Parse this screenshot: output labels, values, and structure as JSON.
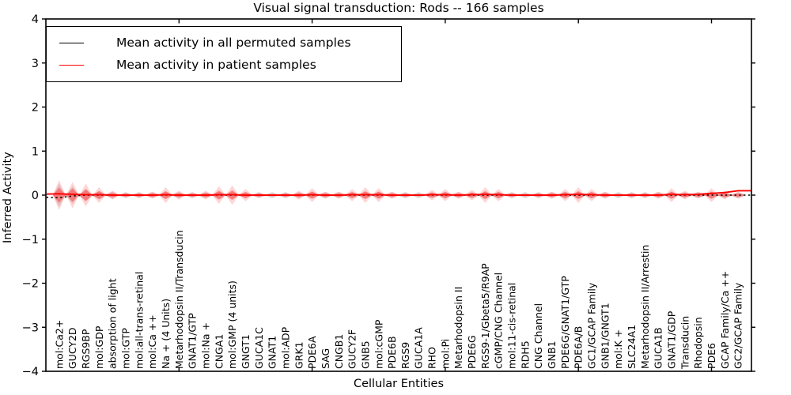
{
  "title": "Visual signal transduction: Rods -- 166 samples",
  "legend": {
    "items": [
      {
        "label": "Mean activity in all permuted samples",
        "color": "#000000"
      },
      {
        "label": "Mean activity in patient samples",
        "color": "#ff0000"
      }
    ]
  },
  "chart_data": {
    "type": "line",
    "subtype": "violin-distributions-with-mean-lines",
    "title": "Visual signal transduction: Rods -- 166 samples",
    "xlabel": "Cellular Entities",
    "ylabel": "Inferred Activity",
    "ylim": [
      -4,
      4
    ],
    "xlim": [
      0,
      53
    ],
    "grid": false,
    "legend_position": "upper left",
    "ytick_labels": [
      "4",
      "3",
      "2",
      "1",
      "0",
      "−1",
      "−2",
      "−3",
      "−4"
    ],
    "ytick_values": [
      4,
      3,
      2,
      1,
      0,
      -1,
      -2,
      -3,
      -4
    ],
    "x_major_ticks": [
      10,
      20,
      30,
      40,
      50
    ],
    "categories": [
      "mol:Ca2+",
      "GUCY2D",
      "RGS9BP",
      "mol:GDP",
      "absorption of light",
      "mol:GTP",
      "mol:all-trans-retinal",
      "mol:Ca ++",
      "Na + (4 Units)",
      "Metarhodopsin II/Transducin",
      "GNAT1/GTP",
      "mol:Na +",
      "CNGA1",
      "mol:GMP (4 units)",
      "GNGT1",
      "GUCA1C",
      "GNAT1",
      "mol:ADP",
      "GRK1",
      "PDE6A",
      "SAG",
      "CNGB1",
      "GUCY2F",
      "GNB5",
      "mol:cGMP",
      "PDE6B",
      "RGS9",
      "GUCA1A",
      "RHO",
      "mol:Pi",
      "Metarhodopsin II",
      "PDE6G",
      "RGS9-1/Gbeta5/R9AP",
      "cGMP/CNG Channel",
      "mol:11-cis-retinal",
      "RDH5",
      "CNG Channel",
      "GNB1",
      "PDE6G/GNAT1/GTP",
      "PDE6A/B",
      "GC1/GCAP Family",
      "GNB1/GNGT1",
      "mol:K +",
      "SLC24A1",
      "Metarhodopsin II/Arrestin",
      "GUCA1B",
      "GNAT1/GDP",
      "Transducin",
      "Rhodopsin",
      "PDE6",
      "GCAP Family/Ca ++",
      "GC2/GCAP Family"
    ],
    "series": [
      {
        "name": "Mean activity in all permuted samples",
        "color": "#000000",
        "style": "dashed",
        "values": [
          -0.06,
          -0.02,
          0,
          0,
          0,
          0,
          0,
          0,
          0,
          0,
          0,
          0,
          0,
          0,
          0,
          0,
          0,
          0,
          0,
          0,
          0,
          0,
          0,
          0,
          0,
          0,
          0,
          0,
          0,
          0,
          0,
          0,
          0,
          0,
          0,
          0,
          0,
          0,
          0,
          0,
          0,
          0,
          0,
          0,
          0,
          0,
          0,
          0,
          0,
          0,
          0,
          0
        ]
      },
      {
        "name": "Mean activity in patient samples",
        "color": "#ff0000",
        "style": "solid",
        "values": [
          0.03,
          0.02,
          0.01,
          0.01,
          0,
          0,
          0,
          0,
          0.01,
          0,
          0,
          0,
          0.01,
          0.01,
          0,
          0,
          0,
          0,
          0,
          0.01,
          0,
          0,
          0.01,
          0.01,
          0.01,
          0,
          0,
          0,
          0.01,
          0.01,
          0,
          0.01,
          0.02,
          0.01,
          0,
          0,
          0,
          0,
          0.01,
          0.02,
          0.01,
          0,
          0,
          0,
          0,
          0,
          0.02,
          0.01,
          0.02,
          0.04,
          0.06,
          0.1
        ]
      }
    ],
    "violins": {
      "patient_halfheight": [
        0.17,
        0.15,
        0.13,
        0.09,
        0.05,
        0.03,
        0.03,
        0.04,
        0.09,
        0.05,
        0.03,
        0.05,
        0.1,
        0.11,
        0.07,
        0.03,
        0.02,
        0.03,
        0.05,
        0.08,
        0.04,
        0.04,
        0.07,
        0.09,
        0.08,
        0.04,
        0.03,
        0.02,
        0.06,
        0.07,
        0.04,
        0.06,
        0.09,
        0.07,
        0.03,
        0.02,
        0.03,
        0.04,
        0.07,
        0.09,
        0.07,
        0.04,
        0.02,
        0.03,
        0.03,
        0.04,
        0.08,
        0.05,
        0.04,
        0.08,
        0.05,
        0.04
      ],
      "permuted_halfheight": [
        0.26,
        0.2,
        0.15,
        0.1,
        0.08,
        0.07,
        0.07,
        0.07,
        0.08,
        0.07,
        0.07,
        0.07,
        0.08,
        0.08,
        0.07,
        0.07,
        0.07,
        0.07,
        0.07,
        0.08,
        0.07,
        0.07,
        0.07,
        0.08,
        0.08,
        0.07,
        0.07,
        0.07,
        0.07,
        0.08,
        0.07,
        0.07,
        0.08,
        0.08,
        0.07,
        0.07,
        0.07,
        0.07,
        0.08,
        0.08,
        0.08,
        0.07,
        0.07,
        0.07,
        0.07,
        0.07,
        0.08,
        0.07,
        0.07,
        0.08,
        0.07,
        0.07
      ],
      "patient_fill": "#ff4444",
      "patient_outer_fill": "#ff8888",
      "permuted_fill": "#bbbbbb"
    },
    "colors": {
      "axis": "#000000",
      "background": "#ffffff"
    }
  }
}
